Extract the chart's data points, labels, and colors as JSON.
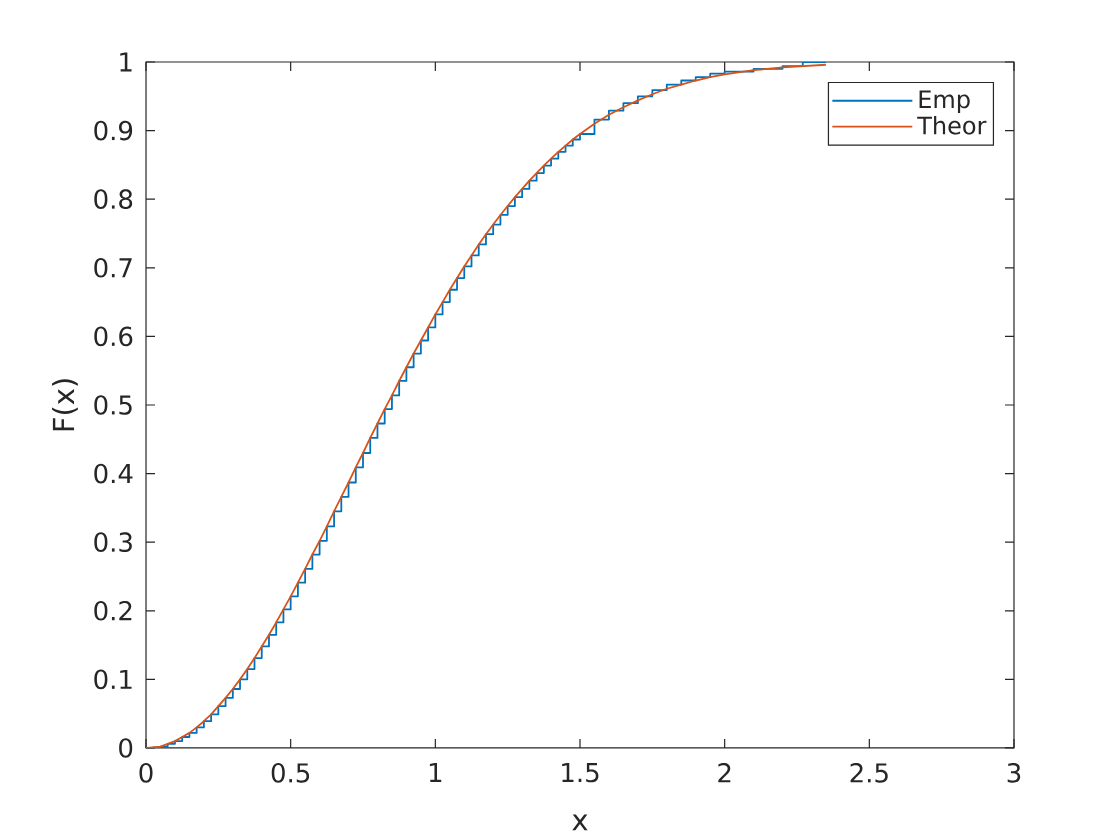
{
  "chart_data": {
    "type": "line",
    "xlabel": "x",
    "ylabel": "F(x)",
    "xlim": [
      0,
      3
    ],
    "ylim": [
      0,
      1
    ],
    "xticks": [
      0,
      0.5,
      1,
      1.5,
      2,
      2.5,
      3
    ],
    "yticks": [
      0,
      0.1,
      0.2,
      0.3,
      0.4,
      0.5,
      0.6,
      0.7,
      0.8,
      0.9,
      1
    ],
    "grid": false,
    "legend": "top right",
    "marker": "none",
    "line_style": "solid",
    "series": [
      {
        "name": "Emp",
        "type": "step",
        "color": "#0072bd",
        "x": [
          0.0,
          0.025,
          0.05,
          0.075,
          0.1,
          0.125,
          0.15,
          0.175,
          0.2,
          0.225,
          0.25,
          0.275,
          0.3,
          0.325,
          0.35,
          0.375,
          0.4,
          0.425,
          0.45,
          0.475,
          0.5,
          0.525,
          0.55,
          0.575,
          0.6,
          0.625,
          0.65,
          0.675,
          0.7,
          0.725,
          0.75,
          0.775,
          0.8,
          0.825,
          0.85,
          0.875,
          0.9,
          0.925,
          0.95,
          0.975,
          1.0,
          1.025,
          1.05,
          1.075,
          1.1,
          1.125,
          1.15,
          1.175,
          1.2,
          1.225,
          1.25,
          1.275,
          1.3,
          1.325,
          1.35,
          1.375,
          1.4,
          1.425,
          1.45,
          1.475,
          1.5,
          1.55,
          1.6,
          1.65,
          1.7,
          1.75,
          1.8,
          1.85,
          1.9,
          1.95,
          2.0,
          2.1,
          2.2,
          2.27,
          2.35
        ],
        "values": [
          0.0,
          0.001,
          0.002,
          0.006,
          0.01,
          0.016,
          0.022,
          0.03,
          0.039,
          0.049,
          0.061,
          0.073,
          0.086,
          0.1,
          0.115,
          0.131,
          0.148,
          0.165,
          0.183,
          0.202,
          0.221,
          0.241,
          0.261,
          0.282,
          0.302,
          0.323,
          0.345,
          0.366,
          0.387,
          0.409,
          0.43,
          0.452,
          0.473,
          0.494,
          0.514,
          0.535,
          0.555,
          0.575,
          0.594,
          0.613,
          0.632,
          0.65,
          0.668,
          0.685,
          0.702,
          0.718,
          0.734,
          0.749,
          0.763,
          0.777,
          0.79,
          0.803,
          0.815,
          0.827,
          0.838,
          0.849,
          0.859,
          0.869,
          0.878,
          0.887,
          0.895,
          0.916,
          0.929,
          0.94,
          0.95,
          0.959,
          0.967,
          0.973,
          0.978,
          0.983,
          0.986,
          0.99,
          0.994,
          1.0,
          1.0
        ]
      },
      {
        "name": "Theor",
        "color": "#d95319",
        "x": [
          0.0,
          0.025,
          0.05,
          0.075,
          0.1,
          0.125,
          0.15,
          0.175,
          0.2,
          0.225,
          0.25,
          0.275,
          0.3,
          0.325,
          0.35,
          0.375,
          0.4,
          0.425,
          0.45,
          0.475,
          0.5,
          0.525,
          0.55,
          0.575,
          0.6,
          0.625,
          0.65,
          0.675,
          0.7,
          0.725,
          0.75,
          0.775,
          0.8,
          0.825,
          0.85,
          0.875,
          0.9,
          0.925,
          0.95,
          0.975,
          1.0,
          1.025,
          1.05,
          1.075,
          1.1,
          1.125,
          1.15,
          1.175,
          1.2,
          1.225,
          1.25,
          1.275,
          1.3,
          1.325,
          1.35,
          1.375,
          1.4,
          1.425,
          1.45,
          1.475,
          1.5,
          1.55,
          1.6,
          1.65,
          1.7,
          1.75,
          1.8,
          1.85,
          1.9,
          1.95,
          2.0,
          2.1,
          2.2,
          2.35
        ],
        "values": [
          0.0,
          0.001,
          0.002,
          0.006,
          0.01,
          0.016,
          0.022,
          0.03,
          0.039,
          0.049,
          0.061,
          0.073,
          0.086,
          0.1,
          0.115,
          0.131,
          0.148,
          0.165,
          0.183,
          0.202,
          0.221,
          0.241,
          0.261,
          0.282,
          0.302,
          0.323,
          0.345,
          0.366,
          0.387,
          0.409,
          0.43,
          0.452,
          0.473,
          0.494,
          0.514,
          0.535,
          0.555,
          0.575,
          0.594,
          0.613,
          0.632,
          0.65,
          0.668,
          0.685,
          0.702,
          0.718,
          0.734,
          0.749,
          0.763,
          0.777,
          0.79,
          0.803,
          0.815,
          0.827,
          0.838,
          0.849,
          0.859,
          0.869,
          0.878,
          0.887,
          0.895,
          0.91,
          0.923,
          0.934,
          0.944,
          0.953,
          0.961,
          0.967,
          0.973,
          0.978,
          0.982,
          0.988,
          0.992,
          0.996
        ]
      }
    ]
  }
}
